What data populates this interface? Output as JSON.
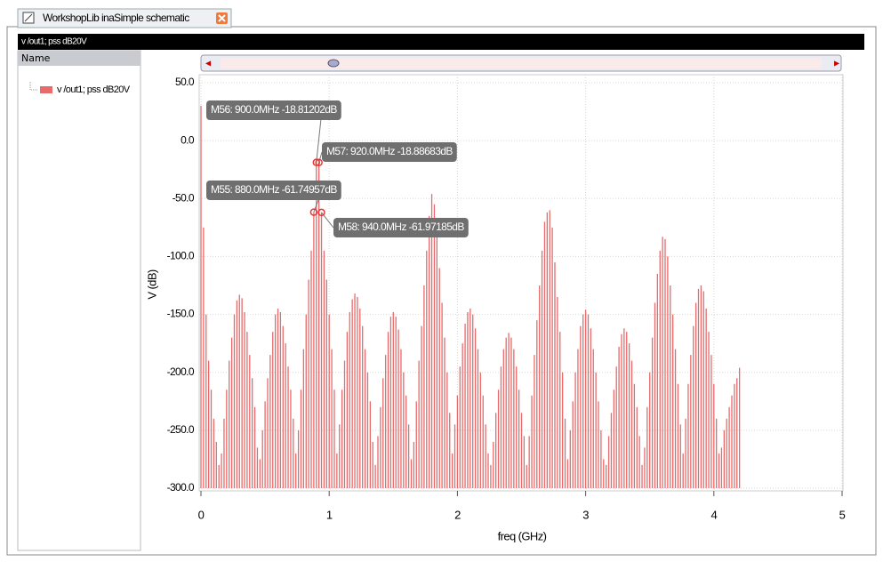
{
  "window": {
    "tab_title": "WorkshopLib inaSimple schematic",
    "trace_bar": "v /out1; pss dB20V",
    "tree_header": "Name"
  },
  "chart_data": {
    "type": "bar",
    "xlabel": "freq (GHz)",
    "ylabel": "V (dB)",
    "grid": true,
    "xlim": [
      0,
      5
    ],
    "ylim": [
      -300,
      50
    ],
    "xticks": [
      0,
      1,
      2,
      3,
      4,
      5
    ],
    "yticks": [
      {
        "value": 50,
        "label": "50.0"
      },
      {
        "value": 0,
        "label": "0.0"
      },
      {
        "value": -50,
        "label": "-50.0"
      },
      {
        "value": -100,
        "label": "-100.0"
      },
      {
        "value": -150,
        "label": "-150.0"
      },
      {
        "value": -200,
        "label": "-200.0"
      },
      {
        "value": -250,
        "label": "-250.0"
      },
      {
        "value": -300,
        "label": "-300.0"
      }
    ],
    "x": [
      0,
      0.02,
      0.04,
      0.06,
      0.08,
      0.1,
      0.12,
      0.14,
      0.16,
      0.18,
      0.2,
      0.22,
      0.24,
      0.26,
      0.28,
      0.3,
      0.32,
      0.34,
      0.36,
      0.38,
      0.4,
      0.42,
      0.44,
      0.46,
      0.48,
      0.5,
      0.52,
      0.54,
      0.56,
      0.58,
      0.6,
      0.62,
      0.64,
      0.66,
      0.68,
      0.7,
      0.72,
      0.74,
      0.76,
      0.78,
      0.8,
      0.82,
      0.84,
      0.86,
      0.88,
      0.9,
      0.92,
      0.94,
      0.96,
      0.98,
      1,
      1.02,
      1.04,
      1.06,
      1.08,
      1.1,
      1.12,
      1.14,
      1.16,
      1.18,
      1.2,
      1.22,
      1.24,
      1.26,
      1.28,
      1.3,
      1.32,
      1.34,
      1.36,
      1.38,
      1.4,
      1.42,
      1.44,
      1.46,
      1.48,
      1.5,
      1.52,
      1.54,
      1.56,
      1.58,
      1.6,
      1.62,
      1.64,
      1.66,
      1.68,
      1.7,
      1.72,
      1.74,
      1.76,
      1.78,
      1.8,
      1.82,
      1.84,
      1.86,
      1.88,
      1.9,
      1.92,
      1.94,
      1.96,
      1.98,
      2,
      2.02,
      2.04,
      2.06,
      2.08,
      2.1,
      2.12,
      2.14,
      2.16,
      2.18,
      2.2,
      2.22,
      2.24,
      2.26,
      2.28,
      2.3,
      2.32,
      2.34,
      2.36,
      2.38,
      2.4,
      2.42,
      2.44,
      2.46,
      2.48,
      2.5,
      2.52,
      2.54,
      2.56,
      2.58,
      2.6,
      2.62,
      2.64,
      2.66,
      2.68,
      2.7,
      2.72,
      2.74,
      2.76,
      2.78,
      2.8,
      2.82,
      2.84,
      2.86,
      2.88,
      2.9,
      2.92,
      2.94,
      2.96,
      2.98,
      3,
      3.02,
      3.04,
      3.06,
      3.08,
      3.1,
      3.12,
      3.14,
      3.16,
      3.18,
      3.2,
      3.22,
      3.24,
      3.26,
      3.28,
      3.3,
      3.32,
      3.34,
      3.36,
      3.38,
      3.4,
      3.42,
      3.44,
      3.46,
      3.48,
      3.5,
      3.52,
      3.54,
      3.56,
      3.58,
      3.6,
      3.62,
      3.64,
      3.66,
      3.68,
      3.7,
      3.72,
      3.74,
      3.76,
      3.78,
      3.8,
      3.82,
      3.84,
      3.86,
      3.88,
      3.9,
      3.92,
      3.94,
      3.96,
      3.98,
      4,
      4.02,
      4.04,
      4.06,
      4.08,
      4.1,
      4.12,
      4.14,
      4.16,
      4.18,
      4.2
    ],
    "series": [
      {
        "name": "v /out1; pss dB20V",
        "color": "#e86a6a",
        "values": [
          30,
          -75,
          -150,
          -190,
          -215,
          -240,
          -260,
          -280,
          -270,
          -240,
          -215,
          -190,
          -170,
          -150,
          -138,
          -133,
          -136,
          -148,
          -165,
          -185,
          -205,
          -230,
          -265,
          -275,
          -250,
          -225,
          -205,
          -185,
          -165,
          -150,
          -145,
          -148,
          -160,
          -175,
          -195,
          -215,
          -240,
          -270,
          -250,
          -215,
          -180,
          -150,
          -120,
          -95,
          -61.74957,
          -18.81202,
          -18.88683,
          -61.97185,
          -95,
          -120,
          -150,
          -180,
          -215,
          -270,
          -245,
          -215,
          -190,
          -165,
          -148,
          -137,
          -132,
          -135,
          -145,
          -160,
          -180,
          -200,
          -225,
          -260,
          -280,
          -255,
          -230,
          -205,
          -185,
          -165,
          -152,
          -148,
          -152,
          -163,
          -180,
          -200,
          -220,
          -245,
          -275,
          -260,
          -225,
          -190,
          -160,
          -125,
          -95,
          -65,
          -46,
          -55,
          -80,
          -110,
          -140,
          -170,
          -200,
          -235,
          -270,
          -245,
          -220,
          -195,
          -175,
          -158,
          -148,
          -145,
          -150,
          -162,
          -180,
          -200,
          -220,
          -245,
          -270,
          -280,
          -260,
          -235,
          -215,
          -195,
          -180,
          -170,
          -166,
          -170,
          -180,
          -195,
          -215,
          -235,
          -255,
          -280,
          -255,
          -220,
          -185,
          -155,
          -125,
          -95,
          -70,
          -62,
          -60,
          -75,
          -105,
          -135,
          -165,
          -200,
          -240,
          -275,
          -250,
          -225,
          -200,
          -180,
          -160,
          -150,
          -146,
          -150,
          -162,
          -180,
          -200,
          -225,
          -250,
          -275,
          -280,
          -255,
          -235,
          -215,
          -195,
          -178,
          -167,
          -162,
          -165,
          -175,
          -190,
          -210,
          -230,
          -255,
          -280,
          -265,
          -230,
          -200,
          -170,
          -140,
          -115,
          -95,
          -83,
          -85,
          -100,
          -125,
          -150,
          -180,
          -210,
          -245,
          -270,
          -240,
          -210,
          -185,
          -160,
          -140,
          -128,
          -125,
          -130,
          -145,
          -165,
          -185,
          -210,
          -240,
          -270,
          -265,
          -250,
          -240,
          -230,
          -220,
          -210,
          -205,
          -196
        ]
      }
    ],
    "markers": [
      {
        "label": "M56: 900.0MHz -18.81202dB",
        "x": 0.9,
        "y": -18.81202
      },
      {
        "label": "M57: 920.0MHz -18.88683dB",
        "x": 0.92,
        "y": -18.88683
      },
      {
        "label": "M55: 880.0MHz -61.74957dB",
        "x": 0.88,
        "y": -61.74957
      },
      {
        "label": "M58: 940.0MHz -61.97185dB",
        "x": 0.94,
        "y": -61.97185
      }
    ]
  }
}
